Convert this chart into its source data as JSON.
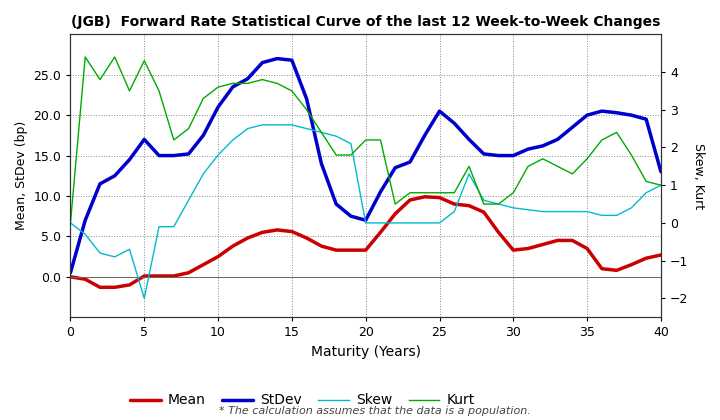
{
  "title": "(JGB)  Forward Rate Statistical Curve of the last 12 Week-to-Week Changes",
  "xlabel": "Maturity (Years)",
  "ylabel_left": "Mean, StDev (bp)",
  "ylabel_right": "Skew, Kurt",
  "footnote": "* The calculation assumes that the data is a population.",
  "x": [
    0,
    1,
    2,
    3,
    4,
    5,
    6,
    7,
    8,
    9,
    10,
    11,
    12,
    13,
    14,
    15,
    16,
    17,
    18,
    19,
    20,
    21,
    22,
    23,
    24,
    25,
    26,
    27,
    28,
    29,
    30,
    31,
    32,
    33,
    34,
    35,
    36,
    37,
    38,
    39,
    40
  ],
  "mean": [
    0.0,
    -0.3,
    -1.3,
    -1.3,
    -1.0,
    0.1,
    0.1,
    0.1,
    0.5,
    1.5,
    2.5,
    3.8,
    4.8,
    5.5,
    5.8,
    5.6,
    4.8,
    3.8,
    3.3,
    3.3,
    3.3,
    5.5,
    7.8,
    9.5,
    9.9,
    9.8,
    9.0,
    8.8,
    8.0,
    5.5,
    3.3,
    3.5,
    4.0,
    4.5,
    4.5,
    3.5,
    1.0,
    0.8,
    1.5,
    2.3,
    2.7
  ],
  "stdev": [
    0.5,
    7.0,
    11.5,
    12.5,
    14.5,
    17.0,
    15.0,
    15.0,
    15.2,
    17.5,
    21.0,
    23.5,
    24.5,
    26.5,
    27.0,
    26.8,
    22.0,
    14.0,
    9.0,
    7.5,
    7.0,
    10.5,
    13.5,
    14.2,
    17.5,
    20.5,
    19.0,
    17.0,
    15.2,
    15.0,
    15.0,
    15.8,
    16.2,
    17.0,
    18.5,
    20.0,
    20.5,
    20.3,
    20.0,
    19.5,
    13.0
  ],
  "skew": [
    0.0,
    -0.3,
    -0.8,
    -0.9,
    -0.7,
    -2.0,
    -0.1,
    -0.1,
    0.6,
    1.3,
    1.8,
    2.2,
    2.5,
    2.6,
    2.6,
    2.6,
    2.5,
    2.4,
    2.3,
    2.1,
    0.0,
    0.0,
    0.0,
    0.0,
    0.0,
    0.0,
    0.3,
    1.3,
    0.6,
    0.5,
    0.4,
    0.35,
    0.3,
    0.3,
    0.3,
    0.3,
    0.2,
    0.2,
    0.4,
    0.8,
    1.0
  ],
  "kurt": [
    0.0,
    4.4,
    3.8,
    4.4,
    3.5,
    4.3,
    3.5,
    2.2,
    2.5,
    3.3,
    3.6,
    3.7,
    3.7,
    3.8,
    3.7,
    3.5,
    3.0,
    2.4,
    1.8,
    1.8,
    2.2,
    2.2,
    0.5,
    0.8,
    0.8,
    0.8,
    0.8,
    1.5,
    0.5,
    0.5,
    0.8,
    1.5,
    1.7,
    1.5,
    1.3,
    1.7,
    2.2,
    2.4,
    1.8,
    1.1,
    1.0
  ],
  "mean_color": "#cc0000",
  "stdev_color": "#0000cc",
  "skew_color": "#00bbcc",
  "kurt_color": "#00aa00",
  "mean_lw": 2.5,
  "stdev_lw": 2.5,
  "skew_lw": 1.0,
  "kurt_lw": 1.0,
  "xlim": [
    0,
    40
  ],
  "ylim_left": [
    -5,
    30
  ],
  "ylim_right": [
    -2.5,
    5.0
  ],
  "xticks": [
    0,
    5,
    10,
    15,
    20,
    25,
    30,
    35,
    40
  ],
  "yticks_left": [
    0.0,
    5.0,
    10.0,
    15.0,
    20.0,
    25.0
  ],
  "yticks_right": [
    -2,
    -1,
    0,
    1,
    2,
    3,
    4
  ],
  "background_color": "#ffffff",
  "legend_entries": [
    "Mean",
    "StDev",
    "Skew",
    "Kurt"
  ]
}
